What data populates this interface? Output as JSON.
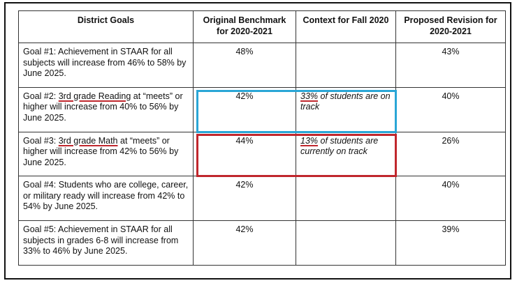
{
  "headers": {
    "goals": "District Goals",
    "benchmark": "Original Benchmark for 2020-2021",
    "context": "Context for Fall 2020",
    "revision": "Proposed Revision for 2020-2021"
  },
  "rows": [
    {
      "goal_prefix": "Goal #1: Achievement in STAAR for all subjects will increase from 46% to 58% by June 2025.",
      "goal_highlight": "",
      "goal_suffix": "",
      "benchmark": "48%",
      "context_highlight": "",
      "context_rest": "",
      "revision": "43%"
    },
    {
      "goal_prefix": "Goal #2: ",
      "goal_highlight": "3rd grade Reading",
      "goal_suffix": " at “meets” or higher will increase from 40% to 56% by June 2025.",
      "benchmark": "42%",
      "context_highlight": "33%",
      "context_rest": " of students are on track",
      "revision": "40%"
    },
    {
      "goal_prefix": "Goal #3: ",
      "goal_highlight": "3rd grade Math",
      "goal_suffix": " at “meets” or higher will increase from 42% to 56% by June 2025.",
      "benchmark": "44%",
      "context_highlight": "13%",
      "context_rest": " of students are currently on track",
      "revision": "26%"
    },
    {
      "goal_prefix": "Goal #4: Students who are college, career, or military ready will increase from 42% to 54% by June 2025.",
      "goal_highlight": "",
      "goal_suffix": "",
      "benchmark": "42%",
      "context_highlight": "",
      "context_rest": "",
      "revision": "40%"
    },
    {
      "goal_prefix": "Goal #5: Achievement in STAAR for all subjects in grades 6-8 will increase from 33% to 46% by June 2025.",
      "goal_highlight": "",
      "goal_suffix": "",
      "benchmark": "42%",
      "context_highlight": "",
      "context_rest": "",
      "revision": "39%"
    }
  ],
  "colors": {
    "highlight_blue": "#2aa6d6",
    "highlight_red": "#c0272d"
  }
}
